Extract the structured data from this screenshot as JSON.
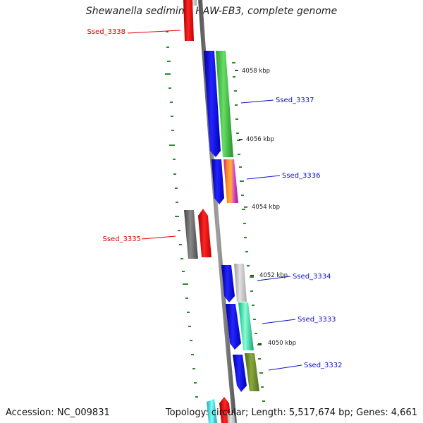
{
  "title": "Shewanella sediminis HAW-EB3, complete genome",
  "footer": {
    "accession": "Accession: NC_009831",
    "summary": "Topology: circular; Length: 5,517,674 bp; Genes: 4,661"
  },
  "scale_labels": [
    "4058 kbp",
    "4056 kbp",
    "4054 kbp",
    "4052 kbp",
    "4050 kbp"
  ],
  "gene_labels": [
    {
      "text": "Ssed_3338",
      "color": "#e00000"
    },
    {
      "text": "Ssed_3337",
      "color": "#1010c0"
    },
    {
      "text": "Ssed_3336",
      "color": "#1010c0"
    },
    {
      "text": "Ssed_3335",
      "color": "#e00000"
    },
    {
      "text": "Ssed_3334",
      "color": "#1010c0"
    },
    {
      "text": "Ssed_3333",
      "color": "#1010c0"
    },
    {
      "text": "Ssed_3332",
      "color": "#1010c0"
    }
  ],
  "colors": {
    "backbone": "#7a7a7a",
    "gc_ticks": "#2a8a2a",
    "forward_cds": "#1414e0",
    "reverse_cds": "#e01414"
  }
}
